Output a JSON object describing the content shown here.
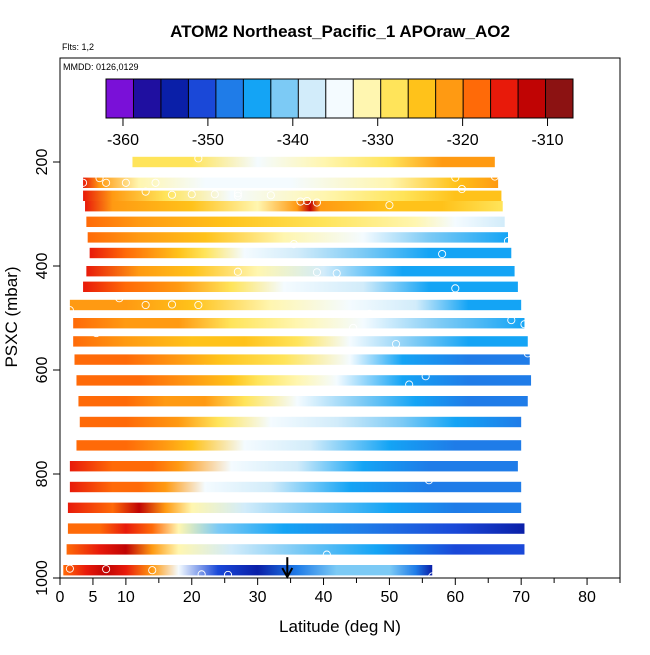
{
  "chart_data": {
    "type": "heatmap",
    "title": "ATOM2 Northeast_Pacific_1 APOraw_AO2",
    "annotations": [
      "Flts: 1,2",
      "MMDD: 0126,0129"
    ],
    "xlabel": "Latitude (deg N)",
    "ylabel": "PSXC (mbar)",
    "xlim": [
      0,
      85
    ],
    "ylim": [
      1000,
      0
    ],
    "x_ticks": [
      0,
      5,
      10,
      20,
      30,
      40,
      50,
      60,
      70,
      80
    ],
    "x_minor_ticks": [
      15,
      25,
      35,
      45,
      55,
      65,
      75,
      85
    ],
    "y_ticks": [
      200,
      400,
      600,
      800,
      1000
    ],
    "colorbar": {
      "range": [
        -362,
        -307
      ],
      "ticks": [
        -360,
        -350,
        -340,
        -330,
        -320,
        -310
      ],
      "colors": [
        "#7a10d8",
        "#1f0fa0",
        "#0a1fa8",
        "#1a48d8",
        "#1f7ce8",
        "#14a4f5",
        "#7ccaf5",
        "#d2ecfa",
        "#f4fbff",
        "#fff6b0",
        "#ffe45a",
        "#ffc21a",
        "#ff9a12",
        "#ff6a08",
        "#e81a0a",
        "#c00404",
        "#8c1212"
      ]
    },
    "layer_height_mbar": 20,
    "layers": [
      {
        "p": 200,
        "x0": 11,
        "x1": 66,
        "stops": [
          [
            11,
            -327
          ],
          [
            20,
            -327
          ],
          [
            30,
            -334
          ],
          [
            40,
            -331
          ],
          [
            50,
            -327
          ],
          [
            58,
            -322
          ],
          [
            66,
            -321
          ]
        ]
      },
      {
        "p": 240,
        "x0": 3.5,
        "x1": 66.5,
        "stops": [
          [
            3.5,
            -314
          ],
          [
            6,
            -321
          ],
          [
            12,
            -331
          ],
          [
            22,
            -334
          ],
          [
            35,
            -334
          ],
          [
            50,
            -331
          ],
          [
            60,
            -324
          ],
          [
            66.5,
            -322
          ]
        ]
      },
      {
        "p": 265,
        "x0": 3.5,
        "x1": 67,
        "stops": [
          [
            3.5,
            -315
          ],
          [
            8,
            -322
          ],
          [
            16,
            -329
          ],
          [
            26,
            -333
          ],
          [
            40,
            -331
          ],
          [
            52,
            -328
          ],
          [
            60,
            -325
          ],
          [
            67,
            -324
          ]
        ]
      },
      {
        "p": 285,
        "x0": 3.8,
        "x1": 67.2,
        "stops": [
          [
            3.8,
            -316
          ],
          [
            8,
            -322
          ],
          [
            20,
            -326
          ],
          [
            30,
            -331
          ],
          [
            36,
            -322
          ],
          [
            38,
            -311
          ],
          [
            39.5,
            -321
          ],
          [
            50,
            -326
          ],
          [
            58,
            -325
          ],
          [
            67.2,
            -328
          ]
        ]
      },
      {
        "p": 315,
        "x0": 4,
        "x1": 67.5,
        "stops": [
          [
            4,
            -319
          ],
          [
            12,
            -322
          ],
          [
            25,
            -325
          ],
          [
            40,
            -327
          ],
          [
            54,
            -330
          ],
          [
            60,
            -334
          ],
          [
            67.5,
            -339
          ]
        ]
      },
      {
        "p": 345,
        "x0": 4.2,
        "x1": 68,
        "stops": [
          [
            4.2,
            -317
          ],
          [
            12,
            -322
          ],
          [
            22,
            -326
          ],
          [
            34,
            -332
          ],
          [
            46,
            -336
          ],
          [
            56,
            -341
          ],
          [
            68,
            -343
          ]
        ]
      },
      {
        "p": 375,
        "x0": 4.5,
        "x1": 68.5,
        "stops": [
          [
            4.5,
            -316
          ],
          [
            10,
            -318
          ],
          [
            18,
            -324
          ],
          [
            22,
            -328
          ],
          [
            28,
            -333
          ],
          [
            36,
            -337
          ],
          [
            46,
            -340
          ],
          [
            56,
            -343
          ],
          [
            68.5,
            -344
          ]
        ]
      },
      {
        "p": 410,
        "x0": 4,
        "x1": 69,
        "stops": [
          [
            4,
            -316
          ],
          [
            12,
            -320
          ],
          [
            20,
            -325
          ],
          [
            30,
            -331
          ],
          [
            40,
            -337
          ],
          [
            52,
            -343
          ],
          [
            69,
            -345
          ]
        ]
      },
      {
        "p": 440,
        "x0": 3.5,
        "x1": 69.5,
        "stops": [
          [
            3.5,
            -315
          ],
          [
            10,
            -318
          ],
          [
            18,
            -322
          ],
          [
            26,
            -329
          ],
          [
            34,
            -334
          ],
          [
            46,
            -339
          ],
          [
            56,
            -343
          ],
          [
            69.5,
            -345
          ]
        ]
      },
      {
        "p": 475,
        "x0": 1.5,
        "x1": 70,
        "stops": [
          [
            1.5,
            -320
          ],
          [
            10,
            -321
          ],
          [
            20,
            -324
          ],
          [
            32,
            -330
          ],
          [
            44,
            -334
          ],
          [
            54,
            -339
          ],
          [
            62,
            -343
          ],
          [
            70,
            -344
          ]
        ]
      },
      {
        "p": 510,
        "x0": 2,
        "x1": 70.5,
        "stops": [
          [
            2,
            -318
          ],
          [
            10,
            -320
          ],
          [
            18,
            -323
          ],
          [
            26,
            -327
          ],
          [
            36,
            -331
          ],
          [
            46,
            -336
          ],
          [
            58,
            -341
          ],
          [
            70.5,
            -343
          ]
        ]
      },
      {
        "p": 545,
        "x0": 2,
        "x1": 71,
        "stops": [
          [
            2,
            -319
          ],
          [
            10,
            -320
          ],
          [
            20,
            -324
          ],
          [
            28,
            -326
          ],
          [
            36,
            -329
          ],
          [
            44,
            -334
          ],
          [
            54,
            -341
          ],
          [
            62,
            -344
          ],
          [
            71,
            -344
          ]
        ]
      },
      {
        "p": 580,
        "x0": 2.2,
        "x1": 71.3,
        "stops": [
          [
            2.2,
            -318
          ],
          [
            10,
            -319
          ],
          [
            18,
            -323
          ],
          [
            24,
            -326
          ],
          [
            34,
            -328
          ],
          [
            44,
            -334
          ],
          [
            52,
            -344
          ],
          [
            62,
            -346
          ],
          [
            71.3,
            -346
          ]
        ]
      },
      {
        "p": 620,
        "x0": 2.5,
        "x1": 71.5,
        "stops": [
          [
            2.5,
            -317
          ],
          [
            12,
            -319
          ],
          [
            20,
            -323
          ],
          [
            26,
            -326
          ],
          [
            30,
            -329
          ],
          [
            36,
            -331
          ],
          [
            42,
            -333
          ],
          [
            52,
            -343
          ],
          [
            62,
            -346
          ],
          [
            71.5,
            -347
          ]
        ]
      },
      {
        "p": 660,
        "x0": 2.8,
        "x1": 71,
        "stops": [
          [
            2.8,
            -318
          ],
          [
            10,
            -319
          ],
          [
            16,
            -320
          ],
          [
            22,
            -323
          ],
          [
            28,
            -328
          ],
          [
            36,
            -335
          ],
          [
            46,
            -341
          ],
          [
            54,
            -345
          ],
          [
            62,
            -346
          ],
          [
            71,
            -346
          ]
        ]
      },
      {
        "p": 700,
        "x0": 3,
        "x1": 70,
        "stops": [
          [
            3,
            -317
          ],
          [
            10,
            -319
          ],
          [
            18,
            -321
          ],
          [
            24,
            -329
          ],
          [
            32,
            -334
          ],
          [
            42,
            -337
          ],
          [
            52,
            -340
          ],
          [
            60,
            -345
          ],
          [
            70,
            -346
          ]
        ]
      },
      {
        "p": 745,
        "x0": 2.5,
        "x1": 70,
        "stops": [
          [
            2.5,
            -317
          ],
          [
            10,
            -319
          ],
          [
            16,
            -320
          ],
          [
            20,
            -326
          ],
          [
            28,
            -333
          ],
          [
            38,
            -338
          ],
          [
            50,
            -344
          ],
          [
            60,
            -346
          ],
          [
            70,
            -346
          ]
        ]
      },
      {
        "p": 785,
        "x0": 1.5,
        "x1": 69.5,
        "stops": [
          [
            1.5,
            -316
          ],
          [
            8,
            -318
          ],
          [
            14,
            -318
          ],
          [
            18,
            -323
          ],
          [
            26,
            -334
          ],
          [
            36,
            -338
          ],
          [
            46,
            -343
          ],
          [
            56,
            -347
          ],
          [
            69.5,
            -347
          ]
        ]
      },
      {
        "p": 825,
        "x0": 1.5,
        "x1": 70,
        "stops": [
          [
            1.5,
            -316
          ],
          [
            8,
            -319
          ],
          [
            12,
            -317
          ],
          [
            16,
            -321
          ],
          [
            22,
            -334
          ],
          [
            32,
            -338
          ],
          [
            44,
            -343
          ],
          [
            56,
            -346
          ],
          [
            70,
            -347
          ]
        ]
      },
      {
        "p": 865,
        "x0": 1.2,
        "x1": 70,
        "stops": [
          [
            1.2,
            -316
          ],
          [
            8,
            -317
          ],
          [
            12,
            -313
          ],
          [
            16,
            -322
          ],
          [
            20,
            -330
          ],
          [
            28,
            -338
          ],
          [
            38,
            -341
          ],
          [
            50,
            -343
          ],
          [
            60,
            -347
          ],
          [
            70,
            -348
          ]
        ]
      },
      {
        "p": 905,
        "x0": 1.2,
        "x1": 70.5,
        "stops": [
          [
            1.2,
            -317
          ],
          [
            6,
            -319
          ],
          [
            10,
            -315
          ],
          [
            14,
            -318
          ],
          [
            18,
            -332
          ],
          [
            24,
            -340
          ],
          [
            34,
            -344
          ],
          [
            46,
            -348
          ],
          [
            60,
            -352
          ],
          [
            70.5,
            -353
          ]
        ]
      },
      {
        "p": 945,
        "x0": 1,
        "x1": 70.5,
        "stops": [
          [
            1,
            -317
          ],
          [
            6,
            -314
          ],
          [
            10,
            -313
          ],
          [
            14,
            -320
          ],
          [
            18,
            -330
          ],
          [
            26,
            -338
          ],
          [
            36,
            -341
          ],
          [
            48,
            -345
          ],
          [
            60,
            -350
          ],
          [
            70.5,
            -352
          ]
        ]
      },
      {
        "p": 985,
        "x0": 0.5,
        "x1": 56.5,
        "stops": [
          [
            0.5,
            -318
          ],
          [
            4,
            -316
          ],
          [
            7,
            -312
          ],
          [
            10,
            -314
          ],
          [
            14,
            -323
          ],
          [
            18,
            -336
          ],
          [
            24,
            -352
          ],
          [
            30,
            -354
          ],
          [
            36,
            -348
          ],
          [
            42,
            -342
          ],
          [
            50,
            -342
          ],
          [
            54,
            -347
          ],
          [
            56.5,
            -355
          ]
        ]
      }
    ],
    "markers": [
      [
        21,
        193
      ],
      [
        30.5,
        182
      ],
      [
        6,
        231
      ],
      [
        60,
        230
      ],
      [
        66,
        228
      ],
      [
        3.5,
        240
      ],
      [
        7,
        240
      ],
      [
        10,
        240
      ],
      [
        14.5,
        240
      ],
      [
        61,
        252
      ],
      [
        13,
        257
      ],
      [
        17,
        263
      ],
      [
        20,
        262
      ],
      [
        23.5,
        262
      ],
      [
        27,
        260
      ],
      [
        27,
        265
      ],
      [
        32,
        264
      ],
      [
        36.5,
        276
      ],
      [
        37.5,
        275
      ],
      [
        39,
        278
      ],
      [
        50,
        283
      ],
      [
        35.5,
        358
      ],
      [
        68,
        352
      ],
      [
        58,
        377
      ],
      [
        27,
        411
      ],
      [
        39,
        412
      ],
      [
        42,
        414
      ],
      [
        60,
        443
      ],
      [
        9,
        462
      ],
      [
        13,
        475
      ],
      [
        17,
        474
      ],
      [
        21,
        475
      ],
      [
        1.5,
        485
      ],
      [
        47,
        492
      ],
      [
        68.5,
        504
      ],
      [
        70.5,
        512
      ],
      [
        44.5,
        519
      ],
      [
        5.5,
        529
      ],
      [
        51,
        550
      ],
      [
        71,
        568
      ],
      [
        22,
        598
      ],
      [
        55.5,
        612
      ],
      [
        53,
        628
      ],
      [
        56,
        812
      ],
      [
        70,
        925
      ],
      [
        40.5,
        955
      ],
      [
        1.5,
        982
      ],
      [
        7,
        983
      ],
      [
        14,
        985
      ],
      [
        21.5,
        993
      ],
      [
        25.5,
        994
      ],
      [
        46,
        1007
      ],
      [
        52,
        1004
      ],
      [
        56.5,
        997
      ]
    ],
    "arrow_x": 34.5
  }
}
